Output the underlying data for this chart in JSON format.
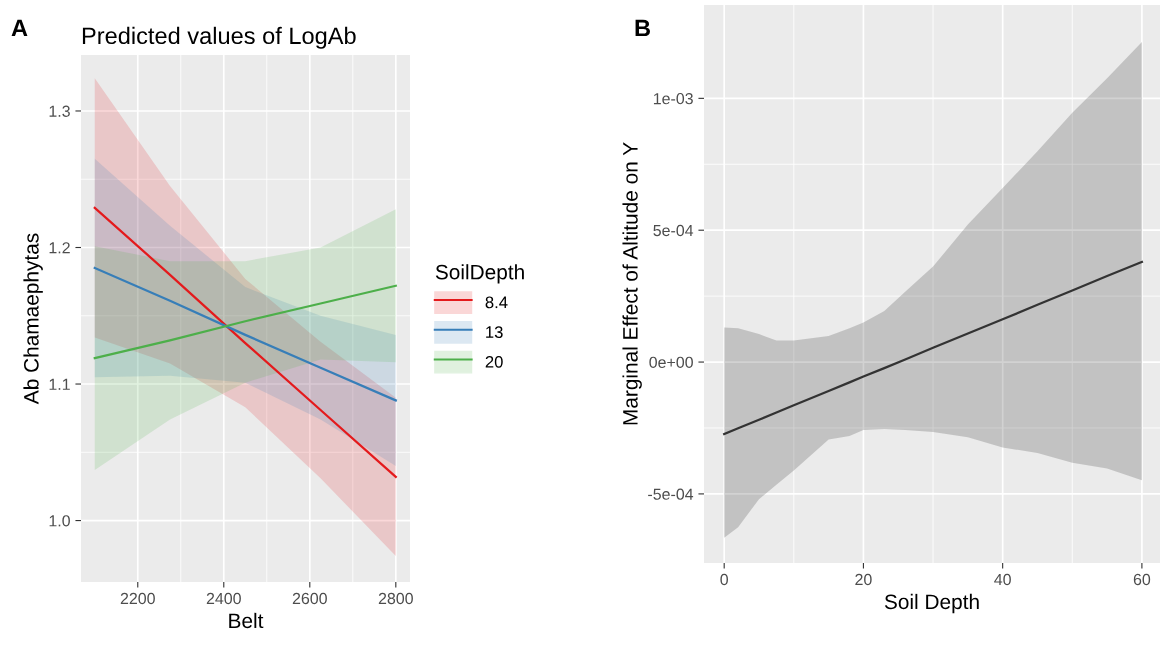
{
  "chart_data": [
    {
      "type": "line",
      "title": "Predicted values of LogAb",
      "xlabel": "Belt",
      "ylabel": "Ab Chamaephytas",
      "legend_title": "SoilDepth",
      "legend": "right",
      "grid": true,
      "annotations": [
        "A"
      ],
      "xlim": [
        2068,
        2833
      ],
      "ylim": [
        0.955,
        1.341
      ],
      "xticks": [
        2200,
        2400,
        2600,
        2800
      ],
      "yticks": [
        {
          "value": 1.0,
          "label": "1.0"
        },
        1.1,
        1.2,
        1.3
      ],
      "series": [
        {
          "name": "8.4",
          "color": "#e41a1c",
          "x": [
            2100,
            2275,
            2450,
            2625,
            2800
          ],
          "values": [
            1.229,
            1.18,
            1.13,
            1.081,
            1.032
          ],
          "upper": [
            1.324,
            1.245,
            1.177,
            1.131,
            1.09
          ],
          "lower": [
            1.134,
            1.115,
            1.083,
            1.031,
            0.974
          ]
        },
        {
          "name": "13",
          "color": "#377eb8",
          "x": [
            2100,
            2275,
            2450,
            2625,
            2800
          ],
          "values": [
            1.185,
            1.161,
            1.136,
            1.112,
            1.088
          ],
          "upper": [
            1.265,
            1.216,
            1.171,
            1.15,
            1.136
          ],
          "lower": [
            1.105,
            1.106,
            1.101,
            1.074,
            1.04
          ]
        },
        {
          "name": "20",
          "color": "#4daf4a",
          "x": [
            2100,
            2275,
            2450,
            2625,
            2800
          ],
          "values": [
            1.119,
            1.132,
            1.146,
            1.159,
            1.172
          ],
          "upper": [
            1.201,
            1.19,
            1.19,
            1.2,
            1.228
          ],
          "lower": [
            1.037,
            1.074,
            1.101,
            1.118,
            1.116
          ]
        }
      ]
    },
    {
      "type": "line",
      "xlabel": "Soil Depth",
      "ylabel": "Marginal Effect of Altitude on Y",
      "grid": true,
      "annotations": [
        "B"
      ],
      "xlim": [
        -2.9,
        62.6
      ],
      "ylim": [
        -0.000762,
        0.001354
      ],
      "xticks": [
        0,
        20,
        40,
        60
      ],
      "yticks": [
        {
          "value": -0.0005,
          "label": "-5e-04"
        },
        {
          "value": 0,
          "label": "0e+00"
        },
        {
          "value": 0.0005,
          "label": "5e-04"
        },
        {
          "value": 0.001,
          "label": "1e-03"
        }
      ],
      "series": [
        {
          "color": "#333333",
          "x": [
            0,
            2,
            5,
            7.5,
            10,
            15,
            18,
            20,
            23,
            26,
            30,
            35,
            40,
            45,
            50,
            55,
            60
          ],
          "values": [
            -0.000273,
            -0.000251,
            -0.000219,
            -0.000191,
            -0.000164,
            -0.00011,
            -7.7e-05,
            -5.5e-05,
            -2.3e-05,
            1e-05,
            5.4e-05,
            0.000108,
            0.000162,
            0.000217,
            0.000271,
            0.000326,
            0.00038
          ],
          "upper": [
            0.000131,
            0.000128,
            0.000106,
            8.2e-05,
            8.2e-05,
            9.9e-05,
            0.000128,
            0.00015,
            0.000194,
            0.000267,
            0.000362,
            0.000522,
            0.00066,
            0.000799,
            0.000945,
            0.001076,
            0.001214
          ],
          "lower": [
            -0.000666,
            -0.000626,
            -0.00052,
            -0.000465,
            -0.000411,
            -0.000294,
            -0.00028,
            -0.000258,
            -0.000254,
            -0.000258,
            -0.000265,
            -0.000285,
            -0.000324,
            -0.000345,
            -0.000382,
            -0.000404,
            -0.000448
          ]
        }
      ]
    }
  ]
}
